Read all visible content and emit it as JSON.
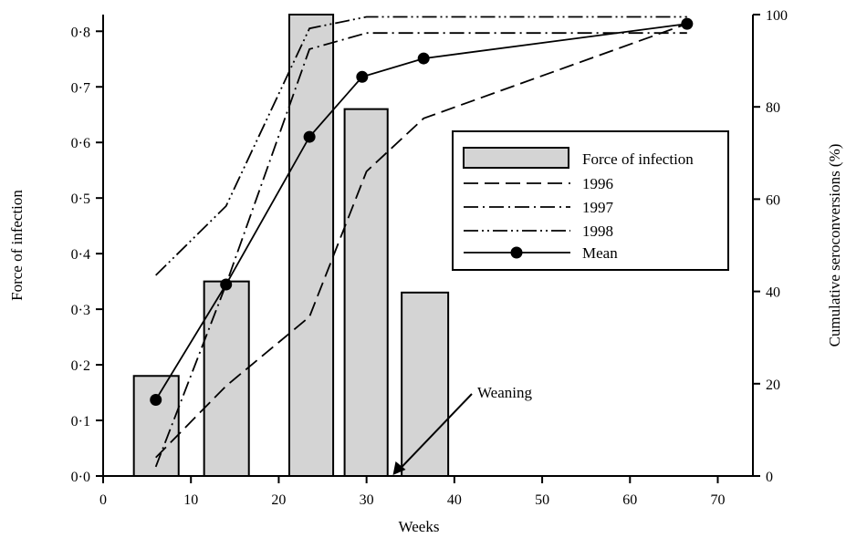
{
  "chart_data": {
    "type": "bar+line",
    "x_axis": {
      "label": "Weeks",
      "range": [
        0,
        74
      ],
      "ticks": [
        "0",
        "10",
        "20",
        "30",
        "40",
        "50",
        "60",
        "70"
      ]
    },
    "y_left": {
      "label": "Force of infection",
      "range": [
        0,
        0.83
      ],
      "ticks": [
        "0·0",
        "0·1",
        "0·2",
        "0·3",
        "0·4",
        "0·5",
        "0·6",
        "0·7",
        "0·8"
      ]
    },
    "y_right": {
      "label": "Cumulative seroconversions (%)",
      "range": [
        0,
        100
      ],
      "ticks": [
        "0",
        "20",
        "40",
        "60",
        "80",
        "100"
      ]
    },
    "bars": {
      "name": "Force of infection",
      "color": "#d4d4d4",
      "items": [
        {
          "x_start": 3.5,
          "x_end": 8.6,
          "value": 0.18
        },
        {
          "x_start": 11.5,
          "x_end": 16.6,
          "value": 0.35
        },
        {
          "x_start": 21.2,
          "x_end": 26.2,
          "value": 0.83
        },
        {
          "x_start": 27.5,
          "x_end": 32.4,
          "value": 0.66
        },
        {
          "x_start": 34.0,
          "x_end": 39.3,
          "value": 0.33
        }
      ]
    },
    "series": [
      {
        "name": "1996",
        "dash": "dash",
        "points": [
          [
            6,
            4
          ],
          [
            14,
            19.5
          ],
          [
            23.5,
            34.5
          ],
          [
            30,
            66
          ],
          [
            36.5,
            77.5
          ],
          [
            66.5,
            98
          ]
        ]
      },
      {
        "name": "1997",
        "dash": "dashdot",
        "points": [
          [
            6,
            2
          ],
          [
            14,
            41.5
          ],
          [
            23.5,
            92.5
          ],
          [
            30,
            96
          ],
          [
            66.5,
            96
          ]
        ]
      },
      {
        "name": "1998",
        "dash": "dashdotdot",
        "points": [
          [
            6,
            43.5
          ],
          [
            14,
            58.5
          ],
          [
            23.5,
            97
          ],
          [
            30,
            99.5
          ],
          [
            66.5,
            99.5
          ]
        ]
      },
      {
        "name": "Mean",
        "dash": "solid",
        "markers": true,
        "points": [
          [
            6,
            16.5
          ],
          [
            14,
            41.5
          ],
          [
            23.5,
            73.5
          ],
          [
            29.5,
            86.5
          ],
          [
            36.5,
            90.5
          ],
          [
            66.5,
            98
          ]
        ]
      }
    ],
    "legend": {
      "placement": "right-middle"
    },
    "annotations": [
      {
        "text": "Weaning",
        "x": 33
      }
    ],
    "grid": false
  }
}
